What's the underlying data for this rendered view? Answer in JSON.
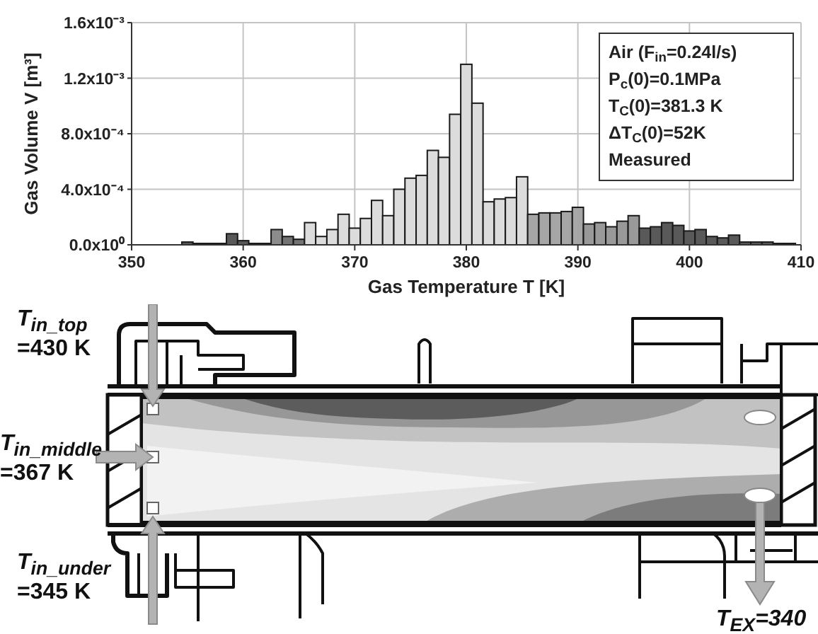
{
  "chart_data": [
    {
      "type": "histogram",
      "xlabel": "Gas Temperature T [K]",
      "ylabel": "Gas Volume V [m³]",
      "bins": [
        354.5,
        355.5,
        356.5,
        357.5,
        358.5,
        359.5,
        360.5,
        361.5,
        362.5,
        363.5,
        364.5,
        365.5,
        366.5,
        367.5,
        368.5,
        369.5,
        370.5,
        371.5,
        372.5,
        373.5,
        374.5,
        375.5,
        376.5,
        377.5,
        378.5,
        379.5,
        380.5,
        381.5,
        382.5,
        383.5,
        384.5,
        385.5,
        386.5,
        387.5,
        388.5,
        389.5,
        390.5,
        391.5,
        392.5,
        393.5,
        394.5,
        395.5,
        396.5,
        397.5,
        398.5,
        399.5,
        400.5,
        401.5,
        402.5,
        403.5,
        404.5,
        405.5,
        406.5,
        407.5,
        408.5,
        409.5
      ],
      "values": [
        2e-05,
        1e-05,
        1e-05,
        1e-05,
        8e-05,
        3e-05,
        1e-05,
        1e-05,
        0.00011,
        6e-05,
        4e-05,
        0.00016,
        6e-05,
        0.00011,
        0.00022,
        0.00012,
        0.00019,
        0.00032,
        0.00021,
        0.0004,
        0.00048,
        0.0005,
        0.00068,
        0.00063,
        0.00094,
        0.0013,
        0.00102,
        0.00031,
        0.00033,
        0.00034,
        0.00049,
        0.00022,
        0.00023,
        0.00023,
        0.00024,
        0.00027,
        0.00015,
        0.00016,
        0.00013,
        0.00017,
        0.00021,
        0.00012,
        0.00013,
        0.00016,
        0.00014,
        0.0001,
        0.00011,
        6e-05,
        5e-05,
        7e-05,
        2e-05,
        2e-05,
        2e-05,
        1e-05,
        1e-05
      ],
      "colors": [
        "#595959",
        "#595959",
        "#595959",
        "#595959",
        "#595959",
        "#595959",
        "#595959",
        "#595959",
        "#8c8c8c",
        "#737373",
        "#737373",
        "#dcdcdc",
        "#dcdcdc",
        "#dcdcdc",
        "#dcdcdc",
        "#dcdcdc",
        "#dcdcdc",
        "#dcdcdc",
        "#dcdcdc",
        "#dcdcdc",
        "#dcdcdc",
        "#dcdcdc",
        "#dcdcdc",
        "#dcdcdc",
        "#dcdcdc",
        "#dcdcdc",
        "#dcdcdc",
        "#dcdcdc",
        "#dcdcdc",
        "#dcdcdc",
        "#dcdcdc",
        "#a6a6a6",
        "#a6a6a6",
        "#a6a6a6",
        "#a6a6a6",
        "#a6a6a6",
        "#999999",
        "#999999",
        "#999999",
        "#999999",
        "#999999",
        "#595959",
        "#595959",
        "#595959",
        "#595959",
        "#595959",
        "#595959",
        "#595959",
        "#595959",
        "#595959",
        "#595959",
        "#595959",
        "#595959",
        "#595959",
        "#595959"
      ],
      "xlim": [
        350,
        410
      ],
      "xticks": [
        350,
        360,
        370,
        380,
        390,
        400,
        410
      ],
      "ylim": [
        0,
        0.0016
      ],
      "yticks": [
        {
          "value": 0,
          "label": "0.0x10⁰"
        },
        {
          "value": 0.0004,
          "label": "4.0x10⁻⁴"
        },
        {
          "value": 0.0008,
          "label": "8.0x10⁻⁴"
        },
        {
          "value": 0.0012,
          "label": "1.2x10⁻³"
        },
        {
          "value": 0.0016,
          "label": "1.6x10⁻³"
        }
      ],
      "grid": true,
      "annotations": [
        "Air (F$_{in}$=0.24l/s)",
        "P$_{c}$(0)=0.1MPa",
        "T$_{C}$(0)=381.3 K",
        "ΔT$_{C}$(0)=52K",
        "Measured"
      ]
    },
    {
      "type": "other",
      "annotations": [
        "T$_{in_top}$ =430 K",
        "T$_{in_middle}$ =367 K",
        "T$_{in_under}$ =345 K",
        "T$_{EX}$=340"
      ]
    }
  ]
}
